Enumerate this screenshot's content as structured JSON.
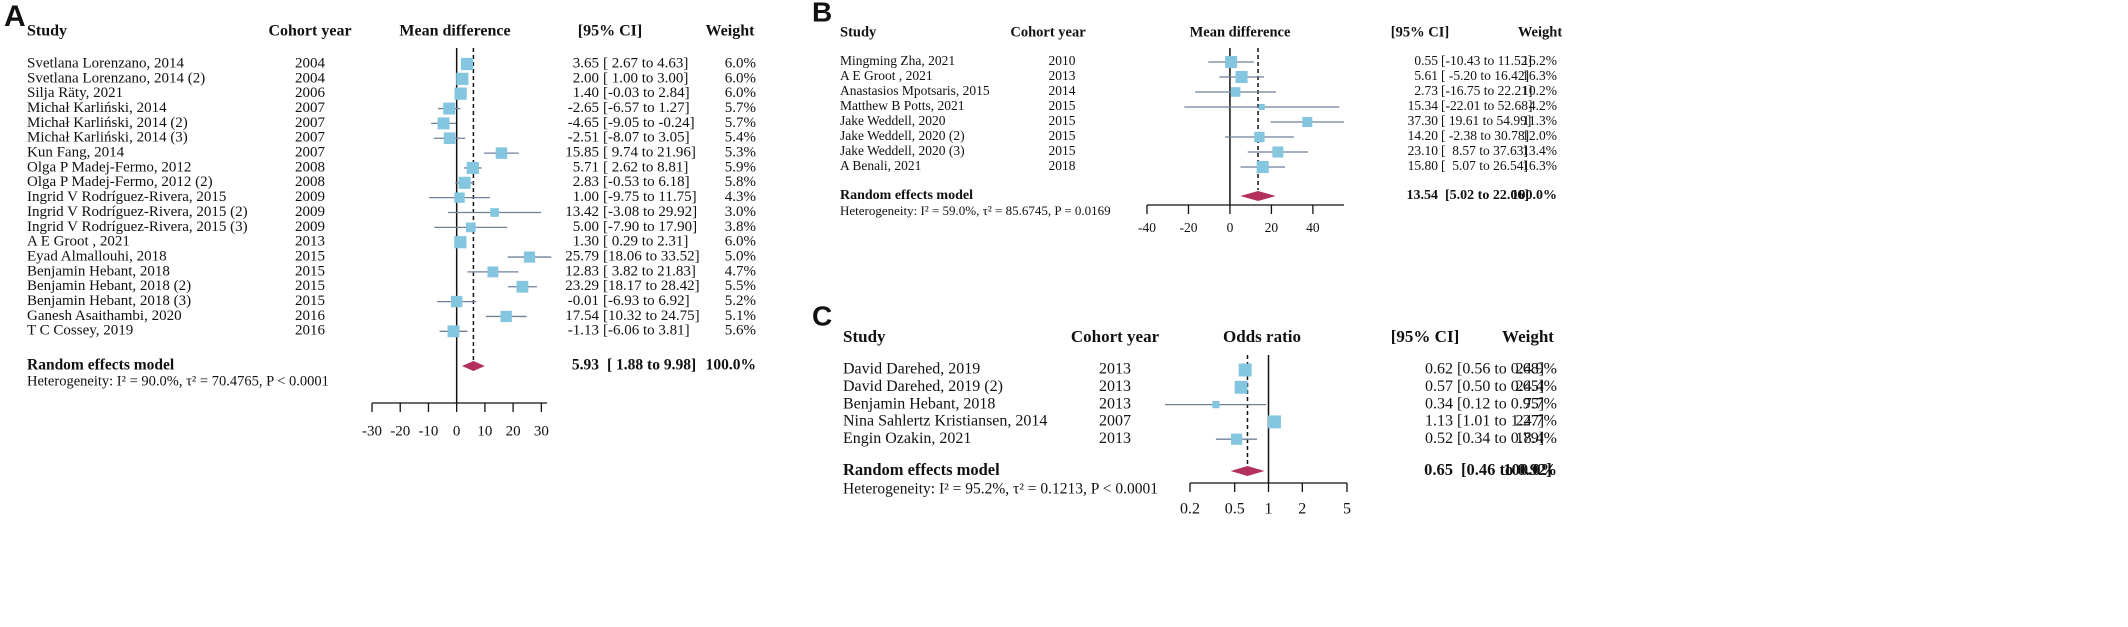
{
  "chart_data": [
    {
      "type": "forest",
      "panel": "A",
      "headers": {
        "study": "Study",
        "year": "Cohort year",
        "effect": "Mean difference",
        "ci": "[95% CI]",
        "weight": "Weight"
      },
      "studies": [
        "Svetlana Lorenzano, 2014",
        "Svetlana Lorenzano, 2014 (2)",
        "Silja Räty, 2021",
        "Michał Karliński, 2014",
        "Michał Karliński, 2014 (2)",
        "Michał Karliński, 2014 (3)",
        "Kun Fang, 2014",
        "Olga P Madej-Fermo, 2012",
        "Olga P Madej-Fermo, 2012 (2)",
        "Ingrid V Rodríguez-Rivera, 2015",
        "Ingrid V Rodríguez-Rivera, 2015 (2)",
        "Ingrid V Rodríguez-Rivera, 2015 (3)",
        "A E Groot , 2021",
        "Eyad Almallouhi, 2018",
        "Benjamin Hebant, 2018",
        "Benjamin Hebant, 2018 (2)",
        "Benjamin Hebant, 2018 (3)",
        "Ganesh Asaithambi, 2020",
        "T C Cossey, 2019"
      ],
      "years": [
        2004,
        2004,
        2006,
        2007,
        2007,
        2007,
        2007,
        2008,
        2008,
        2009,
        2009,
        2009,
        2013,
        2015,
        2015,
        2015,
        2015,
        2016,
        2016
      ],
      "values": [
        3.65,
        2.0,
        1.4,
        -2.65,
        -4.65,
        -2.51,
        15.85,
        5.71,
        2.83,
        1.0,
        13.42,
        5.0,
        1.3,
        25.79,
        12.83,
        23.29,
        -0.01,
        17.54,
        -1.13
      ],
      "value_labels": [
        "3.65",
        "2.00",
        "1.40",
        "-2.65",
        "-4.65",
        "-2.51",
        "15.85",
        "5.71",
        "2.83",
        "1.00",
        "13.42",
        "5.00",
        "1.30",
        "25.79",
        "12.83",
        "23.29",
        "-0.01",
        "17.54",
        "-1.13"
      ],
      "ci_lower": [
        2.67,
        1.0,
        -0.03,
        -6.57,
        -9.05,
        -8.07,
        9.74,
        2.62,
        -0.53,
        -9.75,
        -3.08,
        -7.9,
        0.29,
        18.06,
        3.82,
        18.17,
        -6.93,
        10.32,
        -6.06
      ],
      "ci_upper": [
        4.63,
        3.0,
        2.84,
        1.27,
        -0.24,
        3.05,
        21.96,
        8.81,
        6.18,
        11.75,
        29.92,
        17.9,
        2.31,
        33.52,
        21.83,
        28.42,
        6.92,
        24.75,
        3.81
      ],
      "ci_labels": [
        "[ 2.67 to 4.63]",
        "[ 1.00 to 3.00]",
        "[-0.03 to 2.84]",
        "[-6.57 to 1.27]",
        "[-9.05 to -0.24]",
        "[-8.07 to 3.05]",
        "[ 9.74 to 21.96]",
        "[ 2.62 to 8.81]",
        "[-0.53 to 6.18]",
        "[-9.75 to 11.75]",
        "[-3.08 to 29.92]",
        "[-7.90 to 17.90]",
        "[ 0.29 to 2.31]",
        "[18.06 to 33.52]",
        "[ 3.82 to 21.83]",
        "[18.17 to 28.42]",
        "[-6.93 to 6.92]",
        "[10.32 to 24.75]",
        "[-6.06 to 3.81]"
      ],
      "weights": [
        6.0,
        6.0,
        6.0,
        5.7,
        5.7,
        5.4,
        5.3,
        5.9,
        5.8,
        4.3,
        3.0,
        3.8,
        6.0,
        5.0,
        4.7,
        5.5,
        5.2,
        5.1,
        5.6
      ],
      "weight_labels": [
        "6.0%",
        "6.0%",
        "6.0%",
        "5.7%",
        "5.7%",
        "5.4%",
        "5.3%",
        "5.9%",
        "5.8%",
        "4.3%",
        "3.0%",
        "3.8%",
        "6.0%",
        "5.0%",
        "4.7%",
        "5.5%",
        "5.2%",
        "5.1%",
        "5.6%"
      ],
      "pooled": {
        "name": "Random effects model",
        "value": 5.93,
        "value_label": "5.93",
        "lower": 1.88,
        "upper": 9.98,
        "ci_label": "[ 1.88 to 9.98]",
        "weight": 100.0,
        "weight_label": "100.0%"
      },
      "heterogeneity": "Heterogeneity: I² = 90.0%, τ² = 70.4765, P < 0.0001",
      "null_value": 0,
      "log": false,
      "xlim": [
        -30,
        32
      ],
      "xticks": [
        -30,
        -20,
        -10,
        0,
        10,
        20,
        30
      ],
      "box_color": "#84c6e0",
      "line_color": "#6e8199",
      "diamond_color": "#b3305c"
    },
    {
      "type": "forest",
      "panel": "B",
      "headers": {
        "study": "Study",
        "year": "Cohort year",
        "effect": "Mean difference",
        "ci": "[95% CI]",
        "weight": "Weight"
      },
      "studies": [
        "Mingming Zha, 2021",
        "A E Groot , 2021",
        "Anastasios Mpotsaris, 2015",
        "Matthew B Potts, 2021",
        "Jake Weddell, 2020",
        "Jake Weddell, 2020 (2)",
        "Jake Weddell, 2020 (3)",
        "A Benali, 2021"
      ],
      "years": [
        2010,
        2013,
        2014,
        2015,
        2015,
        2015,
        2015,
        2018
      ],
      "values": [
        0.55,
        5.61,
        2.73,
        15.34,
        37.3,
        14.2,
        23.1,
        15.8
      ],
      "value_labels": [
        "0.55",
        "5.61",
        "2.73",
        "15.34",
        "37.30",
        "14.20",
        "23.10",
        "15.80"
      ],
      "ci_lower": [
        -10.43,
        -5.2,
        -16.75,
        -22.01,
        19.61,
        -2.38,
        8.57,
        5.07
      ],
      "ci_upper": [
        11.52,
        16.42,
        22.21,
        52.68,
        54.99,
        30.78,
        37.63,
        26.54
      ],
      "ci_labels": [
        "[-10.43 to 11.52]",
        "[ -5.20 to 16.42]",
        "[-16.75 to 22.21]",
        "[-22.01 to 52.68]",
        "[ 19.61 to 54.99]",
        "[ -2.38 to 30.78]",
        "[  8.57 to 37.63]",
        "[  5.07 to 26.54]"
      ],
      "weights": [
        16.2,
        16.3,
        10.2,
        4.2,
        11.3,
        12.0,
        13.4,
        16.3
      ],
      "weight_labels": [
        "16.2%",
        "16.3%",
        "10.2%",
        "4.2%",
        "11.3%",
        "12.0%",
        "13.4%",
        "16.3%"
      ],
      "pooled": {
        "name": "Random effects model",
        "value": 13.54,
        "value_label": "13.54",
        "lower": 5.02,
        "upper": 22.06,
        "ci_label": "[5.02 to 22.06]",
        "weight": 100.0,
        "weight_label": "100.0%"
      },
      "heterogeneity": "Heterogeneity: I² = 59.0%, τ² = 85.6745, P = 0.0169",
      "null_value": 0,
      "log": false,
      "xlim": [
        -40,
        55
      ],
      "xticks": [
        -40,
        -20,
        0,
        20,
        40
      ],
      "box_color": "#84c6e0",
      "line_color": "#6e8199",
      "diamond_color": "#b3305c"
    },
    {
      "type": "forest",
      "panel": "C",
      "headers": {
        "study": "Study",
        "year": "Cohort year",
        "effect": "Odds ratio",
        "ci": "[95% CI]",
        "weight": "Weight"
      },
      "studies": [
        "David Darehed, 2019",
        "David Darehed, 2019 (2)",
        "Benjamin Hebant, 2018",
        "Nina Sahlertz Kristiansen, 2014",
        "Engin Ozakin, 2021"
      ],
      "years": [
        2013,
        2013,
        2013,
        2007,
        2013
      ],
      "values": [
        0.62,
        0.57,
        0.34,
        1.13,
        0.52
      ],
      "value_labels": [
        "0.62",
        "0.57",
        "0.34",
        "1.13",
        "0.52"
      ],
      "ci_lower": [
        0.56,
        0.5,
        0.12,
        1.01,
        0.34
      ],
      "ci_upper": [
        0.68,
        0.65,
        0.95,
        1.27,
        0.79
      ],
      "ci_labels": [
        "[0.56 to 0.68]",
        "[0.50 to 0.65]",
        "[0.12 to 0.95]",
        "[1.01 to 1.27]",
        "[0.34 to 0.79]"
      ],
      "weights": [
        24.9,
        24.4,
        7.7,
        24.7,
        18.4
      ],
      "weight_labels": [
        "24.9%",
        "24.4%",
        "7.7%",
        "24.7%",
        "18.4%"
      ],
      "pooled": {
        "name": "Random effects model",
        "value": 0.65,
        "value_label": "0.65",
        "lower": 0.46,
        "upper": 0.92,
        "ci_label": "[0.46 to 0.92]",
        "weight": 100.0,
        "weight_label": "100.0%"
      },
      "heterogeneity": "Heterogeneity: I² = 95.2%, τ² = 0.1213, P < 0.0001",
      "null_value": 1,
      "log": true,
      "xlim": [
        0.2,
        5
      ],
      "xticks": [
        0.2,
        0.5,
        1,
        2,
        5
      ],
      "box_color": "#84c6e0",
      "line_color": "#6e8199",
      "diamond_color": "#b3305c"
    }
  ]
}
